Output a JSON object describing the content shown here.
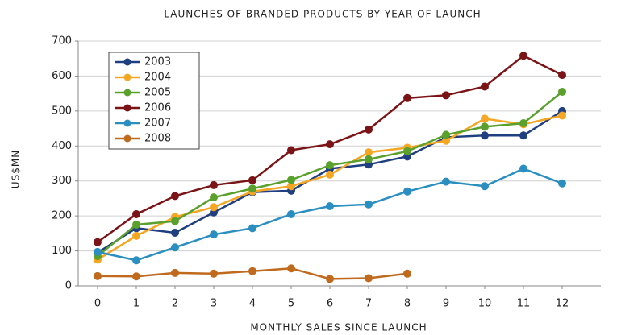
{
  "chart_data": {
    "type": "line",
    "title": "LAUNCHES OF BRANDED PRODUCTS BY YEAR OF LAUNCH",
    "x_label": "MONTHLY SALES SINCE LAUNCH",
    "y_label": "US$MN",
    "x": [
      0,
      1,
      2,
      3,
      4,
      5,
      6,
      7,
      8,
      9,
      10,
      11,
      12
    ],
    "xlim": [
      -0.5,
      13
    ],
    "xticks": [
      0,
      1,
      2,
      3,
      4,
      5,
      6,
      7,
      8,
      9,
      10,
      11,
      12
    ],
    "ylim": [
      0,
      700
    ],
    "yticks": [
      0,
      100,
      200,
      300,
      400,
      500,
      600,
      700
    ],
    "grid": true,
    "legend": "upper-left",
    "series": [
      {
        "name": "2003",
        "color": "#1f3f80",
        "values": [
          95,
          165,
          152,
          210,
          268,
          272,
          335,
          347,
          370,
          425,
          430,
          430,
          500
        ]
      },
      {
        "name": "2004",
        "color": "#f5a623",
        "values": [
          75,
          143,
          197,
          225,
          270,
          285,
          318,
          382,
          395,
          415,
          478,
          462,
          487
        ]
      },
      {
        "name": "2005",
        "color": "#5aa02c",
        "values": [
          85,
          175,
          185,
          253,
          278,
          303,
          345,
          362,
          385,
          432,
          455,
          465,
          555
        ]
      },
      {
        "name": "2006",
        "color": "#7b1416",
        "values": [
          125,
          205,
          257,
          288,
          302,
          388,
          405,
          447,
          537,
          545,
          570,
          658,
          603
        ]
      },
      {
        "name": "2007",
        "color": "#2a8fc0",
        "values": [
          97,
          73,
          110,
          147,
          165,
          205,
          228,
          233,
          270,
          298,
          285,
          335,
          293
        ]
      },
      {
        "name": "2008",
        "color": "#c06a1e",
        "values": [
          28,
          27,
          37,
          35,
          42,
          50,
          20,
          22,
          35,
          null,
          null,
          null,
          null
        ]
      }
    ]
  }
}
